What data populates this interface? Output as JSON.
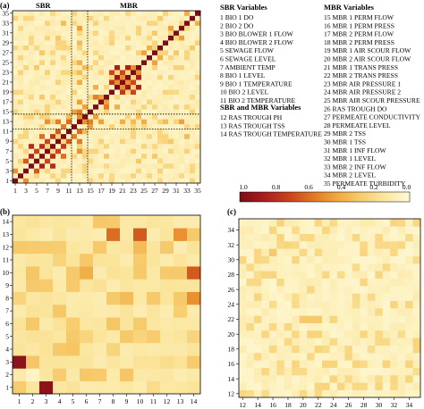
{
  "chart_data": [
    {
      "type": "heatmap",
      "panel": "(a)",
      "group_labels": [
        "SBR",
        "MBR"
      ],
      "x_ticks": [
        1,
        3,
        5,
        7,
        9,
        11,
        13,
        15,
        17,
        19,
        21,
        23,
        25,
        27,
        29,
        31,
        33,
        35
      ],
      "y_ticks": [
        1,
        3,
        5,
        7,
        9,
        11,
        13,
        15,
        17,
        19,
        21,
        23,
        25,
        27,
        29,
        31,
        33,
        35
      ],
      "size": 35,
      "strong_cells": [
        [
          1,
          1,
          1
        ],
        [
          2,
          2,
          1
        ],
        [
          3,
          3,
          1
        ],
        [
          4,
          4,
          1
        ],
        [
          5,
          5,
          1
        ],
        [
          6,
          6,
          1
        ],
        [
          7,
          7,
          1
        ],
        [
          8,
          8,
          1
        ],
        [
          9,
          9,
          1
        ],
        [
          10,
          10,
          1
        ],
        [
          11,
          11,
          1
        ],
        [
          12,
          12,
          1
        ],
        [
          13,
          13,
          1
        ],
        [
          14,
          14,
          1
        ],
        [
          15,
          15,
          1
        ],
        [
          16,
          16,
          1
        ],
        [
          17,
          17,
          1
        ],
        [
          18,
          18,
          1
        ],
        [
          19,
          19,
          1
        ],
        [
          20,
          20,
          1
        ],
        [
          21,
          21,
          1
        ],
        [
          22,
          22,
          1
        ],
        [
          23,
          23,
          1
        ],
        [
          24,
          24,
          1
        ],
        [
          25,
          25,
          1
        ],
        [
          26,
          26,
          1
        ],
        [
          27,
          27,
          1
        ],
        [
          28,
          28,
          1
        ],
        [
          29,
          29,
          1
        ],
        [
          30,
          30,
          1
        ],
        [
          31,
          31,
          1
        ],
        [
          32,
          32,
          1
        ],
        [
          33,
          33,
          1
        ],
        [
          34,
          34,
          1
        ],
        [
          35,
          35,
          1
        ],
        [
          6,
          4,
          0.85
        ],
        [
          4,
          6,
          0.85
        ],
        [
          8,
          6,
          0.8
        ],
        [
          6,
          8,
          0.8
        ],
        [
          8,
          4,
          0.8
        ],
        [
          4,
          8,
          0.8
        ],
        [
          10,
          8,
          0.75
        ],
        [
          8,
          10,
          0.75
        ],
        [
          7,
          5,
          0.7
        ],
        [
          5,
          7,
          0.7
        ],
        [
          9,
          7,
          0.7
        ],
        [
          7,
          9,
          0.7
        ],
        [
          5,
          3,
          0.65
        ],
        [
          3,
          5,
          0.65
        ],
        [
          9,
          11,
          0.65
        ],
        [
          11,
          9,
          0.65
        ],
        [
          10,
          6,
          0.6
        ],
        [
          6,
          10,
          0.6
        ],
        [
          12,
          10,
          0.55
        ],
        [
          10,
          12,
          0.55
        ],
        [
          3,
          1,
          0.5
        ],
        [
          1,
          3,
          0.5
        ],
        [
          13,
          9,
          0.55
        ],
        [
          9,
          13,
          0.55
        ],
        [
          13,
          11,
          0.6
        ],
        [
          11,
          13,
          0.6
        ],
        [
          13,
          7,
          0.5
        ],
        [
          7,
          13,
          0.5
        ],
        [
          14,
          13,
          0.5
        ],
        [
          13,
          14,
          0.5
        ],
        [
          13,
          15,
          0.55
        ],
        [
          15,
          13,
          0.55
        ],
        [
          13,
          17,
          0.45
        ],
        [
          17,
          13,
          0.45
        ],
        [
          20,
          22,
          0.9
        ],
        [
          22,
          20,
          0.9
        ],
        [
          22,
          24,
          0.85
        ],
        [
          24,
          22,
          0.85
        ],
        [
          20,
          24,
          0.85
        ],
        [
          24,
          20,
          0.85
        ],
        [
          19,
          21,
          0.75
        ],
        [
          21,
          19,
          0.75
        ],
        [
          21,
          23,
          0.7
        ],
        [
          23,
          21,
          0.7
        ],
        [
          19,
          23,
          0.7
        ],
        [
          23,
          19,
          0.7
        ],
        [
          20,
          21,
          0.5
        ],
        [
          21,
          20,
          0.5
        ],
        [
          22,
          21,
          0.5
        ],
        [
          21,
          22,
          0.5
        ],
        [
          24,
          23,
          0.5
        ],
        [
          23,
          24,
          0.5
        ],
        [
          16,
          18,
          0.55
        ],
        [
          18,
          16,
          0.55
        ],
        [
          17,
          18,
          0.45
        ],
        [
          18,
          17,
          0.45
        ],
        [
          16,
          20,
          0.4
        ],
        [
          20,
          16,
          0.4
        ],
        [
          25,
          27,
          0.45
        ],
        [
          27,
          25,
          0.45
        ],
        [
          26,
          28,
          0.4
        ],
        [
          28,
          26,
          0.4
        ],
        [
          30,
          32,
          0.45
        ],
        [
          32,
          30,
          0.45
        ],
        [
          33,
          35,
          0.4
        ],
        [
          35,
          33,
          0.4
        ],
        [
          12,
          15,
          0.45
        ],
        [
          15,
          12,
          0.45
        ],
        [
          14,
          16,
          0.45
        ],
        [
          16,
          14,
          0.45
        ],
        [
          32,
          13,
          0.45
        ],
        [
          13,
          32,
          0.45
        ],
        [
          29,
          13,
          0.35
        ],
        [
          13,
          29,
          0.35
        ],
        [
          25,
          13,
          0.4
        ],
        [
          13,
          25,
          0.4
        ],
        [
          21,
          13,
          0.4
        ],
        [
          13,
          21,
          0.4
        ],
        [
          23,
          13,
          0.35
        ],
        [
          13,
          23,
          0.35
        ],
        [
          11,
          14,
          0.35
        ],
        [
          14,
          11,
          0.35
        ],
        [
          33,
          10,
          0.35
        ],
        [
          10,
          33,
          0.35
        ],
        [
          30,
          9,
          0.3
        ],
        [
          9,
          30,
          0.3
        ],
        [
          27,
          6,
          0.3
        ],
        [
          6,
          27,
          0.3
        ],
        [
          24,
          14,
          0.35
        ],
        [
          14,
          24,
          0.35
        ],
        [
          18,
          6,
          0.3
        ],
        [
          6,
          18,
          0.3
        ],
        [
          5,
          24,
          0.3
        ],
        [
          24,
          5,
          0.3
        ],
        [
          34,
          28,
          0.3
        ],
        [
          28,
          34,
          0.3
        ],
        [
          31,
          27,
          0.3
        ],
        [
          27,
          31,
          0.3
        ]
      ]
    },
    {
      "type": "heatmap",
      "panel": "(b)",
      "x_ticks": [
        1,
        2,
        3,
        4,
        5,
        6,
        7,
        8,
        9,
        10,
        11,
        12,
        13,
        14
      ],
      "y_ticks": [
        1,
        2,
        3,
        4,
        5,
        6,
        7,
        8,
        9,
        10,
        11,
        12,
        13,
        14
      ],
      "size": 14,
      "strong_cells": [
        [
          3,
          1,
          0.95
        ],
        [
          1,
          3,
          0.95
        ],
        [
          2,
          2,
          0.05
        ],
        [
          8,
          13,
          0.6
        ],
        [
          10,
          13,
          0.65
        ],
        [
          13,
          13,
          0.5
        ],
        [
          14,
          10,
          0.65
        ],
        [
          14,
          8,
          0.5
        ],
        [
          10,
          12,
          0.35
        ],
        [
          12,
          12,
          0.3
        ],
        [
          6,
          10,
          0.4
        ],
        [
          9,
          8,
          0.35
        ],
        [
          13,
          10,
          0.3
        ],
        [
          11,
          8,
          0.3
        ],
        [
          13,
          8,
          0.3
        ],
        [
          7,
          12,
          0.3
        ],
        [
          5,
          9,
          0.3
        ],
        [
          4,
          4,
          0.3
        ],
        [
          10,
          10,
          0.3
        ],
        [
          12,
          10,
          0.3
        ],
        [
          2,
          9,
          0.3
        ],
        [
          1,
          8,
          0.25
        ],
        [
          8,
          4,
          0.25
        ],
        [
          10,
          5,
          0.25
        ],
        [
          14,
          5,
          0.25
        ],
        [
          11,
          1,
          0.2
        ],
        [
          12,
          3,
          0.2
        ],
        [
          6,
          5,
          0.25
        ],
        [
          1,
          12,
          0.3
        ],
        [
          4,
          11,
          0.25
        ]
      ]
    },
    {
      "type": "heatmap",
      "panel": "(c)",
      "x_ticks": [
        12,
        14,
        16,
        18,
        20,
        22,
        24,
        26,
        28,
        30,
        32,
        34
      ],
      "y_ticks": [
        12,
        14,
        16,
        18,
        20,
        22,
        24,
        26,
        28,
        30,
        32,
        34
      ],
      "x_range": [
        12,
        35
      ],
      "strong_cells": [
        [
          20,
          22,
          0.3
        ],
        [
          21,
          22,
          0.3
        ],
        [
          22,
          22,
          0.3
        ],
        [
          22,
          20,
          0.25
        ],
        [
          22,
          18,
          0.25
        ],
        [
          16,
          31,
          0.3
        ],
        [
          16,
          24,
          0.2
        ],
        [
          31,
          16,
          0.25
        ],
        [
          34,
          16,
          0.25
        ],
        [
          17,
          15,
          0.2
        ],
        [
          35,
          15,
          0.2
        ],
        [
          24,
          16,
          0.25
        ],
        [
          13,
          12,
          0.2
        ],
        [
          19,
          25,
          0.2
        ],
        [
          25,
          28,
          0.2
        ],
        [
          29,
          18,
          0.2
        ],
        [
          30,
          14,
          0.2
        ],
        [
          33,
          20,
          0.2
        ],
        [
          27,
          24,
          0.2
        ],
        [
          14,
          28,
          0.2
        ]
      ]
    }
  ],
  "colorbar": {
    "ticks": [
      "1.0",
      "0.8",
      "0.6",
      "0.4",
      "0.2",
      "0.0"
    ],
    "stops": [
      "#7b0d16",
      "#a81e1f",
      "#c7421b",
      "#e07724",
      "#f1a83d",
      "#f7cd6f",
      "#fbe7a1",
      "#fef9d8"
    ]
  },
  "legend": {
    "sbr_title": "SBR Variables",
    "sbr_items": [
      "1     BIO 1 DO",
      "2     BIO 2 DO",
      "3     BIO BLOWER 1 FLOW",
      "4     BIO BLOWER 2 FLOW",
      "5     SEWAGE FLOW",
      "6     SEWAGE LEVEL",
      "7     AMBIENT TEMP",
      "8     BIO 1 LEVEL",
      "9     BIO 1 TEMPERATURE",
      "10   BIO 2 LEVEL",
      "11   BIO 2 TEMPERATURE"
    ],
    "both_title": "SBR and MBR Variables",
    "both_items": [
      "12   RAS TROUGH PH",
      "13   RAS TROUGH TSS",
      "14   RAS TROUGH TEMPERATURE"
    ],
    "mbr_title": "MBR Variables",
    "mbr_items": [
      "15   MBR 1 PERM FLOW",
      "16   MBR 1 PERM PRESS",
      "17   MBR 2 PERM FLOW",
      "18   MBR 2 PERM PRESS",
      "19   MBR 1 AIR SCOUR FLOW",
      "20   MBR 2 AIR SCOUR FLOW",
      "21   MBR 1 TRANS PRESS",
      "22   MBR 2 TRANS PRESS",
      "23   MBR AIR PRESSURE 1",
      "24   MBR AIR PRESSURE 2",
      "25   MBR AIR SCOUR PRESSURE",
      "26   RAS TROUGH DO",
      "27   PERMEATE CONDUCTIVITY",
      "28   PERMEATE LEVEL",
      "29   MBR 2 TSS",
      "30   MBR 1 TSS",
      "31   MBR 1 INF FLOW",
      "32   MBR 1 LEVEL",
      "33   MBR 2 INF FLOW",
      "34   MBR 2 LEVEL",
      "35   PERMEATE TURBIDITY"
    ]
  }
}
